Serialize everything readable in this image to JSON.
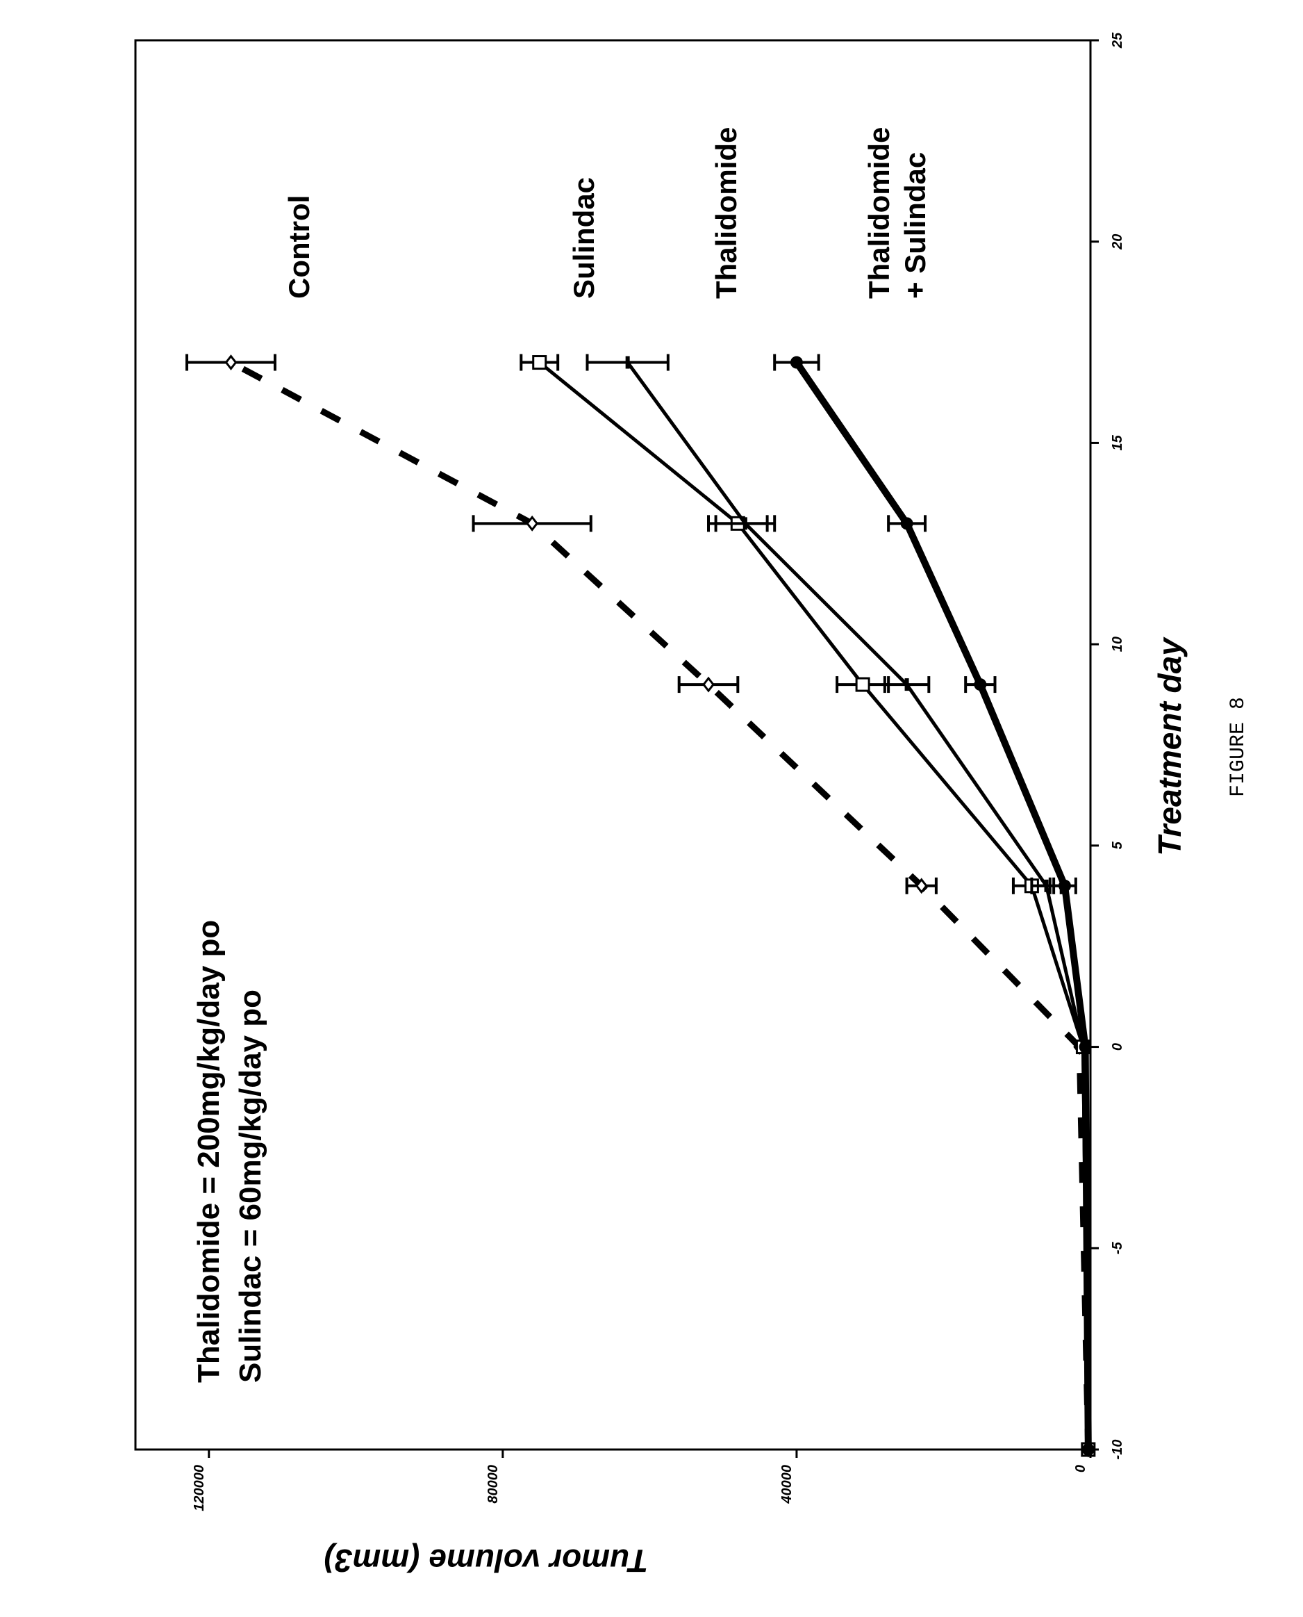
{
  "chart_data": {
    "type": "line",
    "orientation": "rotated-90-clockwise",
    "caption": "FIGURE 8",
    "xlabel": "Treatment day",
    "ylabel": "Tumor volume (mm3)",
    "xlim": [
      -10,
      25
    ],
    "ylim": [
      0,
      130000
    ],
    "x_ticks": [
      -10,
      -5,
      0,
      5,
      10,
      15,
      20,
      25
    ],
    "y_ticks": [
      0,
      40000,
      80000,
      120000
    ],
    "annotations": [
      "Thalidomide = 200mg/kg/day po",
      "Sulindac = 60mg/kg/day po"
    ],
    "series": [
      {
        "name": "Control",
        "label_lines": [
          "Control"
        ],
        "style": "dashed",
        "marker": "open-diamond",
        "x": [
          -10,
          0,
          4,
          9,
          13,
          17
        ],
        "values": [
          300,
          1500,
          23000,
          52000,
          76000,
          117000
        ],
        "errors": [
          0,
          0,
          2000,
          4000,
          8000,
          6000
        ]
      },
      {
        "name": "Sulindac",
        "label_lines": [
          "Sulindac"
        ],
        "style": "solid",
        "marker": "open-square",
        "x": [
          -10,
          0,
          4,
          9,
          13,
          17
        ],
        "values": [
          300,
          1000,
          8000,
          31000,
          48000,
          75000
        ],
        "errors": [
          0,
          0,
          2500,
          3500,
          4000,
          2500
        ]
      },
      {
        "name": "Thalidomide",
        "label_lines": [
          "Thalidomide"
        ],
        "style": "solid",
        "marker": "small-dash",
        "x": [
          -10,
          0,
          4,
          9,
          13,
          17
        ],
        "values": [
          300,
          1000,
          6000,
          25000,
          47000,
          63000
        ],
        "errors": [
          0,
          0,
          2000,
          3000,
          4000,
          5500
        ]
      },
      {
        "name": "Thalidomide + Sulindac",
        "label_lines": [
          "Thalidomide",
          "+ Sulindac"
        ],
        "style": "thick",
        "marker": "filled-circle",
        "x": [
          -10,
          0,
          4,
          9,
          13,
          17
        ],
        "values": [
          300,
          700,
          3500,
          15000,
          25000,
          40000
        ],
        "errors": [
          0,
          0,
          1500,
          2000,
          2500,
          3000
        ]
      }
    ]
  }
}
